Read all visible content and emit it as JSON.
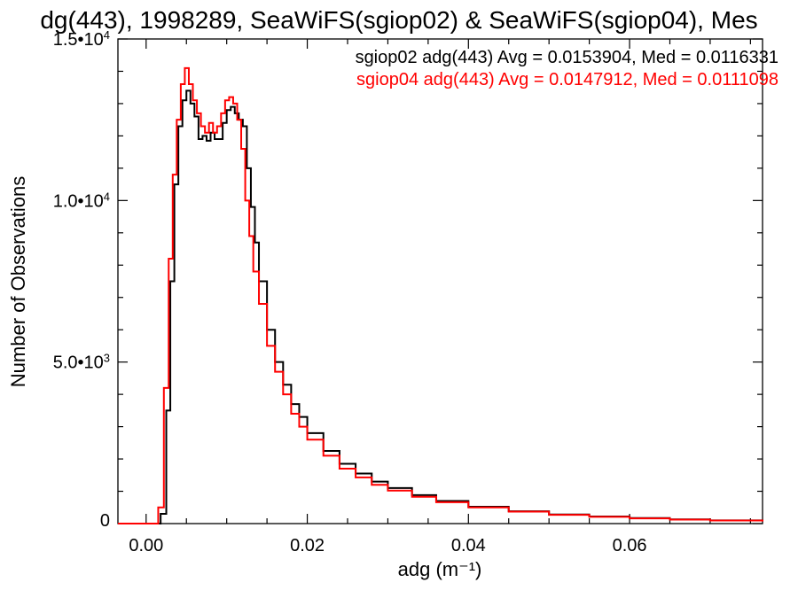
{
  "chart_data": {
    "type": "line",
    "title": "dg(443), 1998289, SeaWiFS(sgiop02) & SeaWiFS(sgiop04), Mes",
    "xlabel": "adg (m⁻¹)",
    "ylabel": "Number of Observations",
    "xlim": [
      -0.0035,
      0.0765
    ],
    "ylim": [
      0,
      15000
    ],
    "grid": false,
    "x_ticks": [
      {
        "value": 0.0,
        "label": "0.00"
      },
      {
        "value": 0.02,
        "label": "0.02"
      },
      {
        "value": 0.04,
        "label": "0.04"
      },
      {
        "value": 0.06,
        "label": "0.06"
      }
    ],
    "y_ticks": [
      {
        "value": 0,
        "mantissa": "0",
        "exp": ""
      },
      {
        "value": 5000,
        "mantissa": "5.0•10",
        "exp": "3"
      },
      {
        "value": 10000,
        "mantissa": "1.0•10",
        "exp": "4"
      },
      {
        "value": 15000,
        "mantissa": "1.5•10",
        "exp": "4"
      }
    ],
    "legend_placement": "top-right",
    "series": [
      {
        "name": "sgiop02 adg(443) Avg = 0.0153904, Med = 0.0116331",
        "color": "#000000",
        "x": [
          -0.0035,
          0.0008,
          0.0018,
          0.0025,
          0.003,
          0.0035,
          0.004,
          0.0045,
          0.005,
          0.0055,
          0.006,
          0.0065,
          0.007,
          0.0075,
          0.008,
          0.0085,
          0.009,
          0.0095,
          0.01,
          0.0105,
          0.011,
          0.0115,
          0.012,
          0.0125,
          0.013,
          0.0135,
          0.014,
          0.015,
          0.016,
          0.017,
          0.018,
          0.019,
          0.02,
          0.022,
          0.024,
          0.026,
          0.028,
          0.03,
          0.033,
          0.036,
          0.04,
          0.045,
          0.05,
          0.055,
          0.06,
          0.065,
          0.07,
          0.0765
        ],
        "values": [
          0,
          0,
          300,
          3500,
          7500,
          10500,
          12300,
          13100,
          13400,
          13000,
          12600,
          11900,
          12000,
          11850,
          12100,
          11900,
          11900,
          12400,
          12800,
          12900,
          12700,
          12500,
          12300,
          11000,
          9800,
          8700,
          7500,
          6000,
          5000,
          4300,
          3700,
          3300,
          2800,
          2250,
          1850,
          1550,
          1300,
          1100,
          880,
          700,
          520,
          380,
          280,
          220,
          170,
          130,
          100,
          70
        ]
      },
      {
        "name": "sgiop04 adg(443) Avg = 0.0147912, Med = 0.0111098",
        "color": "#ff0000",
        "x": [
          -0.0035,
          0.0005,
          0.0015,
          0.0022,
          0.0028,
          0.0033,
          0.0038,
          0.0043,
          0.0048,
          0.0053,
          0.0058,
          0.0063,
          0.0068,
          0.0073,
          0.0078,
          0.0083,
          0.0088,
          0.0093,
          0.0098,
          0.0103,
          0.0108,
          0.0113,
          0.0118,
          0.0123,
          0.0128,
          0.0133,
          0.014,
          0.015,
          0.016,
          0.017,
          0.018,
          0.019,
          0.02,
          0.022,
          0.024,
          0.026,
          0.028,
          0.03,
          0.033,
          0.036,
          0.04,
          0.045,
          0.05,
          0.055,
          0.06,
          0.065,
          0.07,
          0.0765
        ],
        "values": [
          0,
          0,
          500,
          4200,
          8200,
          10800,
          12500,
          13600,
          14100,
          13600,
          13100,
          12700,
          12300,
          12100,
          12400,
          12100,
          12300,
          12700,
          13100,
          13200,
          13000,
          12500,
          11600,
          10000,
          8900,
          7800,
          6800,
          5500,
          4700,
          4000,
          3400,
          3000,
          2600,
          2100,
          1700,
          1430,
          1200,
          1020,
          830,
          660,
          500,
          370,
          270,
          210,
          160,
          125,
          95,
          65
        ]
      }
    ]
  }
}
